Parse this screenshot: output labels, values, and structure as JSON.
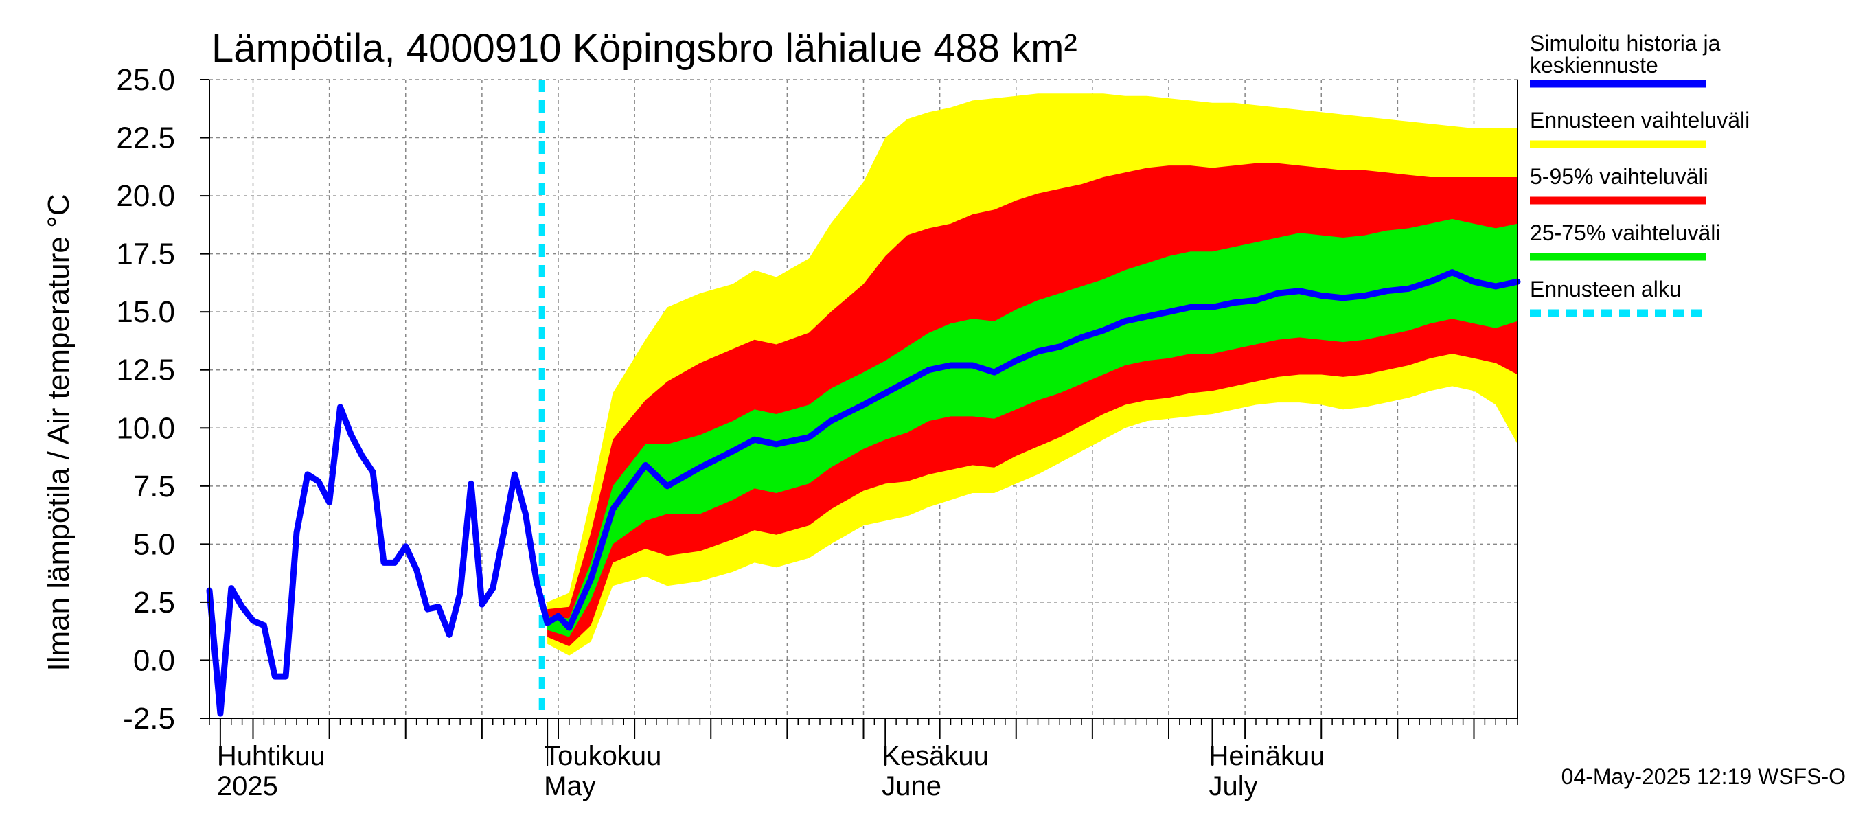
{
  "chart_data": {
    "type": "line",
    "title": "Lämpötila, 4000910 Köpingsbro lähialue 488 km²",
    "ylabel": "Ilman lämpötila / Air temperature   °C",
    "ylim": [
      -2.5,
      25.0
    ],
    "yticks": [
      "-2.5",
      "0.0",
      "2.5",
      "5.0",
      "7.5",
      "10.0",
      "12.5",
      "15.0",
      "17.5",
      "20.0",
      "22.5",
      "25.0"
    ],
    "x_range_days": [
      0,
      120
    ],
    "month_labels": [
      {
        "day": 1,
        "fi": "Huhtikuu",
        "en": "2025"
      },
      {
        "day": 31,
        "fi": "Toukokuu",
        "en": "May"
      },
      {
        "day": 62,
        "fi": "Kesäkuu",
        "en": "June"
      },
      {
        "day": 92,
        "fi": "Heinäkuu",
        "en": "July"
      }
    ],
    "forecast_start_day": 30.5,
    "legend": [
      {
        "label": "Simuloitu historia ja",
        "label2": "keskiennuste",
        "color": "#0000ff",
        "style": "solid"
      },
      {
        "label": "Ennusteen vaihteluväli",
        "label2": "",
        "color": "#ffff00",
        "style": "solid"
      },
      {
        "label": "5-95% vaihteluväli",
        "label2": "",
        "color": "#ff0000",
        "style": "solid"
      },
      {
        "label": "25-75% vaihteluväli",
        "label2": "",
        "color": "#00ee00",
        "style": "solid"
      },
      {
        "label": "Ennusteen alku",
        "label2": "",
        "color": "#00e5ff",
        "style": "dashed"
      }
    ],
    "history": {
      "x": [
        0,
        1,
        2,
        3,
        4,
        5,
        6,
        7,
        8,
        9,
        10,
        11,
        12,
        13,
        14,
        15,
        16,
        17,
        18,
        19,
        20,
        21,
        22,
        23,
        24,
        25,
        26,
        27,
        28,
        29,
        30,
        31,
        32,
        33
      ],
      "y": [
        3.0,
        -2.3,
        3.1,
        2.3,
        1.7,
        1.5,
        -0.7,
        -0.7,
        5.5,
        8.0,
        7.7,
        6.8,
        10.9,
        9.7,
        8.8,
        8.1,
        4.2,
        4.2,
        4.9,
        3.9,
        2.2,
        2.3,
        1.1,
        2.9,
        7.6,
        2.4,
        3.1,
        5.5,
        8.0,
        6.3,
        3.4,
        1.6,
        1.9,
        1.4
      ]
    },
    "forecast": {
      "x": [
        31,
        33,
        35,
        37,
        40,
        42,
        45,
        48,
        50,
        52,
        55,
        57,
        60,
        62,
        64,
        66,
        68,
        70,
        72,
        74,
        76,
        78,
        80,
        82,
        84,
        86,
        88,
        90,
        92,
        94,
        96,
        98,
        100,
        102,
        104,
        106,
        108,
        110,
        112,
        114,
        116,
        118,
        120
      ],
      "median": [
        1.6,
        1.4,
        3.5,
        6.5,
        8.4,
        7.5,
        8.3,
        9.0,
        9.5,
        9.3,
        9.6,
        10.3,
        11.0,
        11.5,
        12.0,
        12.5,
        12.7,
        12.7,
        12.4,
        12.9,
        13.3,
        13.5,
        13.9,
        14.2,
        14.6,
        14.8,
        15.0,
        15.2,
        15.2,
        15.4,
        15.5,
        15.8,
        15.9,
        15.7,
        15.6,
        15.7,
        15.9,
        16.0,
        16.3,
        16.7,
        16.3,
        16.1,
        16.3
      ],
      "p25": [
        1.3,
        1.0,
        2.6,
        5.0,
        6.0,
        6.3,
        6.3,
        6.9,
        7.4,
        7.2,
        7.6,
        8.3,
        9.1,
        9.5,
        9.8,
        10.3,
        10.5,
        10.5,
        10.4,
        10.8,
        11.2,
        11.5,
        11.9,
        12.3,
        12.7,
        12.9,
        13.0,
        13.2,
        13.2,
        13.4,
        13.6,
        13.8,
        13.9,
        13.8,
        13.7,
        13.8,
        14.0,
        14.2,
        14.5,
        14.7,
        14.5,
        14.3,
        14.6
      ],
      "p75": [
        1.9,
        1.8,
        4.2,
        7.5,
        9.3,
        9.3,
        9.7,
        10.3,
        10.8,
        10.6,
        11.0,
        11.7,
        12.4,
        12.9,
        13.5,
        14.1,
        14.5,
        14.7,
        14.6,
        15.1,
        15.5,
        15.8,
        16.1,
        16.4,
        16.8,
        17.1,
        17.4,
        17.6,
        17.6,
        17.8,
        18.0,
        18.2,
        18.4,
        18.3,
        18.2,
        18.3,
        18.5,
        18.6,
        18.8,
        19.0,
        18.8,
        18.6,
        18.8
      ],
      "p05": [
        1.0,
        0.6,
        1.5,
        4.2,
        4.8,
        4.5,
        4.7,
        5.2,
        5.6,
        5.4,
        5.8,
        6.5,
        7.3,
        7.6,
        7.7,
        8.0,
        8.2,
        8.4,
        8.3,
        8.8,
        9.2,
        9.6,
        10.1,
        10.6,
        11.0,
        11.2,
        11.3,
        11.5,
        11.6,
        11.8,
        12.0,
        12.2,
        12.3,
        12.3,
        12.2,
        12.3,
        12.5,
        12.7,
        13.0,
        13.2,
        13.0,
        12.8,
        12.3
      ],
      "p95": [
        2.2,
        2.3,
        5.5,
        9.5,
        11.2,
        12.0,
        12.8,
        13.4,
        13.8,
        13.6,
        14.1,
        15.0,
        16.2,
        17.4,
        18.3,
        18.6,
        18.8,
        19.2,
        19.4,
        19.8,
        20.1,
        20.3,
        20.5,
        20.8,
        21.0,
        21.2,
        21.3,
        21.3,
        21.2,
        21.3,
        21.4,
        21.4,
        21.3,
        21.2,
        21.1,
        21.1,
        21.0,
        20.9,
        20.8,
        20.8,
        20.8,
        20.8,
        20.8
      ],
      "min": [
        0.7,
        0.2,
        0.8,
        3.2,
        3.6,
        3.2,
        3.4,
        3.8,
        4.2,
        4.0,
        4.4,
        5.0,
        5.8,
        6.0,
        6.2,
        6.6,
        6.9,
        7.2,
        7.2,
        7.6,
        8.0,
        8.5,
        9.0,
        9.5,
        10.0,
        10.3,
        10.4,
        10.5,
        10.6,
        10.8,
        11.0,
        11.1,
        11.1,
        11.0,
        10.8,
        10.9,
        11.1,
        11.3,
        11.6,
        11.8,
        11.6,
        11.0,
        9.3
      ],
      "max": [
        2.5,
        2.9,
        7.0,
        11.5,
        13.8,
        15.2,
        15.8,
        16.2,
        16.8,
        16.5,
        17.3,
        18.8,
        20.6,
        22.5,
        23.3,
        23.6,
        23.8,
        24.1,
        24.2,
        24.3,
        24.4,
        24.4,
        24.4,
        24.4,
        24.3,
        24.3,
        24.2,
        24.1,
        24.0,
        24.0,
        23.9,
        23.8,
        23.7,
        23.6,
        23.5,
        23.4,
        23.3,
        23.2,
        23.1,
        23.0,
        22.9,
        22.9,
        22.9
      ]
    }
  },
  "footer": "04-May-2025 12:19 WSFS-O"
}
